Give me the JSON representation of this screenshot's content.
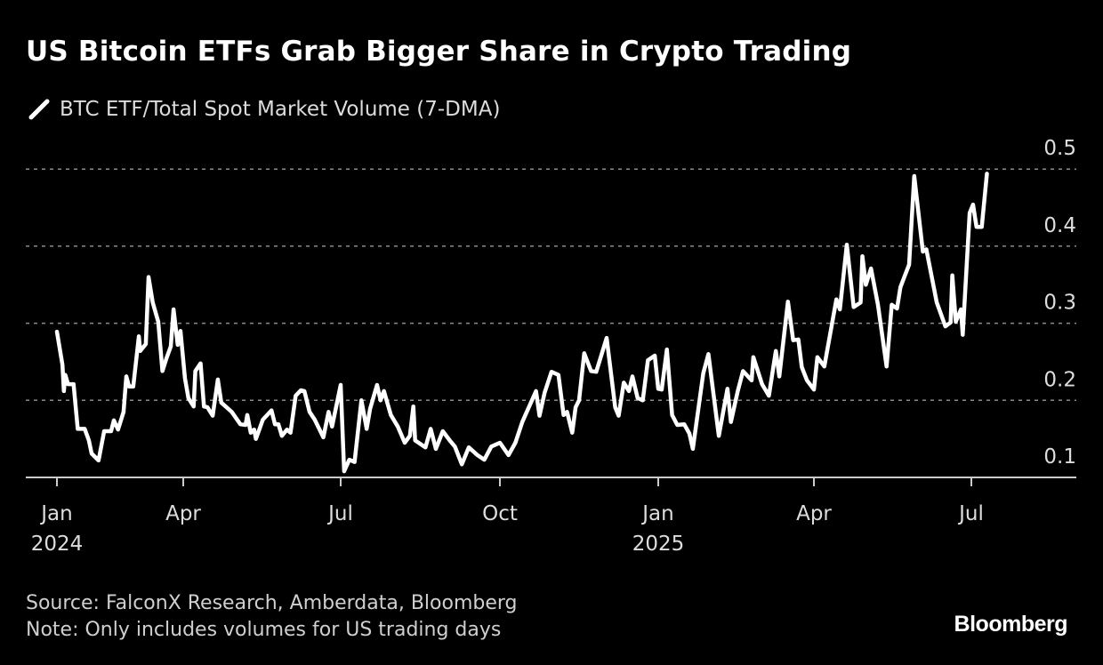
{
  "title": "US Bitcoin ETFs Grab Bigger Share in Crypto Trading",
  "footer": {
    "source": "Source: FalconX Research, Amberdata, Bloomberg",
    "note": "Note: Only includes volumes for US trading days",
    "logo": "Bloomberg"
  },
  "chart_data": {
    "type": "line",
    "title": "US Bitcoin ETFs Grab Bigger Share in Crypto Trading",
    "xlabel": "",
    "ylabel": "",
    "ylim": [
      0.1,
      0.5
    ],
    "grid": true,
    "legend_placement": "top-left",
    "line_color": "#ffffff",
    "background": "#000000",
    "y_ticks": [
      "0.1",
      "0.2",
      "0.3",
      "0.4",
      "0.5"
    ],
    "x_ticks": [
      {
        "date": "2024-01-01",
        "label": "Jan",
        "year": "2024"
      },
      {
        "date": "2024-04-01",
        "label": "Apr",
        "year": ""
      },
      {
        "date": "2024-07-01",
        "label": "Jul",
        "year": ""
      },
      {
        "date": "2024-10-01",
        "label": "Oct",
        "year": ""
      },
      {
        "date": "2025-01-01",
        "label": "Jan",
        "year": "2025"
      },
      {
        "date": "2025-04-01",
        "label": "Apr",
        "year": ""
      },
      {
        "date": "2025-07-01",
        "label": "Jul",
        "year": ""
      }
    ],
    "series": [
      {
        "name": "BTC ETF/Total Spot Market Volume (7-DMA)",
        "points": [
          [
            "2024-01-01",
            0.289
          ],
          [
            "2024-01-05",
            0.246
          ],
          [
            "2024-01-06",
            0.212
          ],
          [
            "2024-01-07",
            0.233
          ],
          [
            "2024-01-09",
            0.221
          ],
          [
            "2024-01-13",
            0.221
          ],
          [
            "2024-01-16",
            0.163
          ],
          [
            "2024-01-21",
            0.163
          ],
          [
            "2024-01-24",
            0.148
          ],
          [
            "2024-01-26",
            0.131
          ],
          [
            "2024-01-31",
            0.122
          ],
          [
            "2024-02-04",
            0.16
          ],
          [
            "2024-02-09",
            0.16
          ],
          [
            "2024-02-11",
            0.174
          ],
          [
            "2024-02-14",
            0.162
          ],
          [
            "2024-02-18",
            0.185
          ],
          [
            "2024-02-20",
            0.231
          ],
          [
            "2024-02-22",
            0.218
          ],
          [
            "2024-02-25",
            0.218
          ],
          [
            "2024-02-29",
            0.283
          ],
          [
            "2024-03-01",
            0.264
          ],
          [
            "2024-03-05",
            0.273
          ],
          [
            "2024-03-07",
            0.36
          ],
          [
            "2024-03-10",
            0.327
          ],
          [
            "2024-03-14",
            0.302
          ],
          [
            "2024-03-17",
            0.238
          ],
          [
            "2024-03-20",
            0.255
          ],
          [
            "2024-03-23",
            0.27
          ],
          [
            "2024-03-25",
            0.318
          ],
          [
            "2024-03-28",
            0.272
          ],
          [
            "2024-03-30",
            0.29
          ],
          [
            "2024-04-02",
            0.229
          ],
          [
            "2024-04-04",
            0.203
          ],
          [
            "2024-04-07",
            0.192
          ],
          [
            "2024-04-08",
            0.238
          ],
          [
            "2024-04-11",
            0.248
          ],
          [
            "2024-04-13",
            0.192
          ],
          [
            "2024-04-15",
            0.191
          ],
          [
            "2024-04-18",
            0.18
          ],
          [
            "2024-04-21",
            0.227
          ],
          [
            "2024-04-23",
            0.197
          ],
          [
            "2024-04-29",
            0.185
          ],
          [
            "2024-05-04",
            0.169
          ],
          [
            "2024-05-07",
            0.168
          ],
          [
            "2024-05-08",
            0.181
          ],
          [
            "2024-05-10",
            0.158
          ],
          [
            "2024-05-12",
            0.162
          ],
          [
            "2024-05-13",
            0.15
          ],
          [
            "2024-05-17",
            0.175
          ],
          [
            "2024-05-22",
            0.187
          ],
          [
            "2024-05-24",
            0.169
          ],
          [
            "2024-05-26",
            0.169
          ],
          [
            "2024-05-28",
            0.154
          ],
          [
            "2024-05-31",
            0.162
          ],
          [
            "2024-06-02",
            0.158
          ],
          [
            "2024-06-05",
            0.206
          ],
          [
            "2024-06-08",
            0.213
          ],
          [
            "2024-06-10",
            0.212
          ],
          [
            "2024-06-13",
            0.185
          ],
          [
            "2024-06-16",
            0.175
          ],
          [
            "2024-06-21",
            0.152
          ],
          [
            "2024-06-24",
            0.185
          ],
          [
            "2024-06-26",
            0.166
          ],
          [
            "2024-07-01",
            0.22
          ],
          [
            "2024-07-03",
            0.108
          ],
          [
            "2024-07-06",
            0.123
          ],
          [
            "2024-07-09",
            0.12
          ],
          [
            "2024-07-13",
            0.2
          ],
          [
            "2024-07-16",
            0.163
          ],
          [
            "2024-07-18",
            0.189
          ],
          [
            "2024-07-22",
            0.22
          ],
          [
            "2024-07-24",
            0.2
          ],
          [
            "2024-07-26",
            0.212
          ],
          [
            "2024-07-30",
            0.181
          ],
          [
            "2024-08-03",
            0.166
          ],
          [
            "2024-08-07",
            0.145
          ],
          [
            "2024-08-10",
            0.154
          ],
          [
            "2024-08-12",
            0.192
          ],
          [
            "2024-08-13",
            0.148
          ],
          [
            "2024-08-19",
            0.139
          ],
          [
            "2024-08-22",
            0.163
          ],
          [
            "2024-08-25",
            0.137
          ],
          [
            "2024-08-29",
            0.16
          ],
          [
            "2024-09-02",
            0.148
          ],
          [
            "2024-09-05",
            0.14
          ],
          [
            "2024-09-09",
            0.117
          ],
          [
            "2024-09-13",
            0.139
          ],
          [
            "2024-09-18",
            0.129
          ],
          [
            "2024-09-22",
            0.123
          ],
          [
            "2024-09-26",
            0.14
          ],
          [
            "2024-10-01",
            0.145
          ],
          [
            "2024-10-06",
            0.129
          ],
          [
            "2024-10-10",
            0.145
          ],
          [
            "2024-10-14",
            0.172
          ],
          [
            "2024-10-22",
            0.212
          ],
          [
            "2024-10-24",
            0.18
          ],
          [
            "2024-10-27",
            0.21
          ],
          [
            "2024-10-31",
            0.237
          ],
          [
            "2024-11-04",
            0.233
          ],
          [
            "2024-11-07",
            0.181
          ],
          [
            "2024-11-09",
            0.185
          ],
          [
            "2024-11-12",
            0.158
          ],
          [
            "2024-11-14",
            0.191
          ],
          [
            "2024-11-16",
            0.2
          ],
          [
            "2024-11-19",
            0.261
          ],
          [
            "2024-11-23",
            0.238
          ],
          [
            "2024-11-26",
            0.237
          ],
          [
            "2024-12-02",
            0.281
          ],
          [
            "2024-12-07",
            0.191
          ],
          [
            "2024-12-09",
            0.18
          ],
          [
            "2024-12-12",
            0.223
          ],
          [
            "2024-12-15",
            0.212
          ],
          [
            "2024-12-17",
            0.231
          ],
          [
            "2024-12-20",
            0.203
          ],
          [
            "2024-12-23",
            0.2
          ],
          [
            "2024-12-26",
            0.252
          ],
          [
            "2024-12-30",
            0.258
          ],
          [
            "2025-01-01",
            0.215
          ],
          [
            "2025-01-03",
            0.214
          ],
          [
            "2025-01-06",
            0.266
          ],
          [
            "2025-01-09",
            0.181
          ],
          [
            "2025-01-12",
            0.168
          ],
          [
            "2025-01-16",
            0.169
          ],
          [
            "2025-01-19",
            0.157
          ],
          [
            "2025-01-21",
            0.137
          ],
          [
            "2025-01-27",
            0.235
          ],
          [
            "2025-01-30",
            0.26
          ],
          [
            "2025-02-05",
            0.154
          ],
          [
            "2025-02-10",
            0.215
          ],
          [
            "2025-02-12",
            0.172
          ],
          [
            "2025-02-16",
            0.212
          ],
          [
            "2025-02-19",
            0.238
          ],
          [
            "2025-02-24",
            0.226
          ],
          [
            "2025-02-25",
            0.256
          ],
          [
            "2025-03-02",
            0.221
          ],
          [
            "2025-03-06",
            0.206
          ],
          [
            "2025-03-10",
            0.264
          ],
          [
            "2025-03-12",
            0.231
          ],
          [
            "2025-03-17",
            0.328
          ],
          [
            "2025-03-20",
            0.278
          ],
          [
            "2025-03-23",
            0.279
          ],
          [
            "2025-03-25",
            0.243
          ],
          [
            "2025-03-28",
            0.226
          ],
          [
            "2025-04-01",
            0.214
          ],
          [
            "2025-04-03",
            0.256
          ],
          [
            "2025-04-07",
            0.244
          ],
          [
            "2025-04-14",
            0.331
          ],
          [
            "2025-04-16",
            0.318
          ],
          [
            "2025-04-20",
            0.402
          ],
          [
            "2025-04-24",
            0.321
          ],
          [
            "2025-04-28",
            0.327
          ],
          [
            "2025-04-29",
            0.387
          ],
          [
            "2025-05-01",
            0.35
          ],
          [
            "2025-05-04",
            0.371
          ],
          [
            "2025-05-08",
            0.324
          ],
          [
            "2025-05-13",
            0.244
          ],
          [
            "2025-05-16",
            0.324
          ],
          [
            "2025-05-19",
            0.319
          ],
          [
            "2025-05-21",
            0.347
          ],
          [
            "2025-05-26",
            0.376
          ],
          [
            "2025-05-29",
            0.491
          ],
          [
            "2025-06-03",
            0.393
          ],
          [
            "2025-06-05",
            0.396
          ],
          [
            "2025-06-11",
            0.327
          ],
          [
            "2025-06-16",
            0.296
          ],
          [
            "2025-06-19",
            0.301
          ],
          [
            "2025-06-20",
            0.362
          ],
          [
            "2025-06-22",
            0.302
          ],
          [
            "2025-06-25",
            0.318
          ],
          [
            "2025-06-26",
            0.285
          ],
          [
            "2025-06-30",
            0.443
          ],
          [
            "2025-07-02",
            0.454
          ],
          [
            "2025-07-04",
            0.425
          ],
          [
            "2025-07-07",
            0.425
          ],
          [
            "2025-07-10",
            0.494
          ]
        ]
      }
    ]
  }
}
